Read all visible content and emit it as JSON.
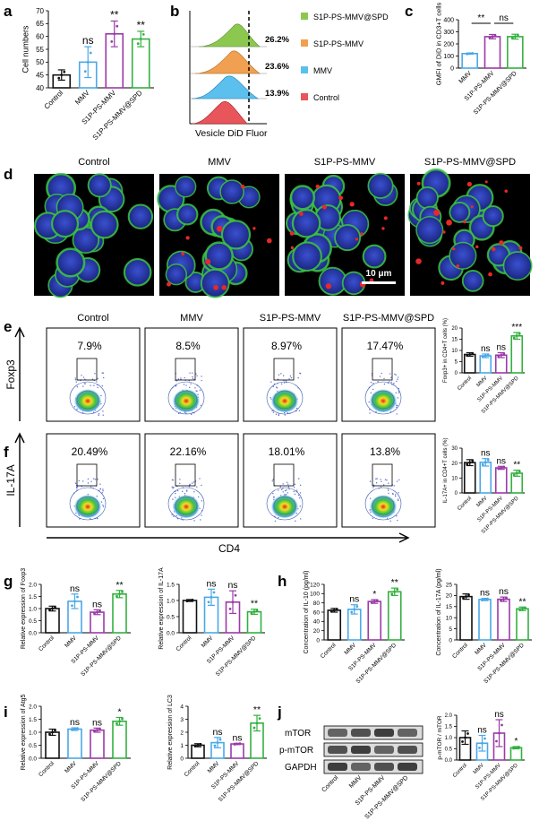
{
  "panels": {
    "a": "a",
    "b": "b",
    "c": "c",
    "d": "d",
    "e": "e",
    "f": "f",
    "g": "g",
    "h": "h",
    "i": "i",
    "j": "j"
  },
  "colors": {
    "control": "#111111",
    "mmv": "#4aa8e8",
    "s1p": "#9b3aa8",
    "spd": "#33b040",
    "hist_spd": "#8cc850",
    "hist_s1p": "#f0a050",
    "hist_mmv": "#5bc0ee",
    "hist_control": "#e8555a",
    "cell_nucleus": "#2a3aa8",
    "cell_membrane": "#3cc840",
    "particles": "#e82828"
  },
  "groups": [
    "Control",
    "MMV",
    "S1P-PS-MMV",
    "S1P-PS-MMV@SPD"
  ],
  "hist": {
    "legend": [
      "S1P-PS-MMV@SPD",
      "S1P-PS-MMV",
      "MMV",
      "Control"
    ],
    "percents": [
      "26.2%",
      "23.6%",
      "13.9%"
    ],
    "xlabel": "Vesicle DiD Fluor"
  },
  "micro": {
    "titles": [
      "Control",
      "MMV",
      "S1P-PS-MMV",
      "S1P-PS-MMV@SPD"
    ],
    "scalebar": "10 μm"
  },
  "flow": {
    "titles": [
      "Control",
      "MMV",
      "S1P-PS-MMV",
      "S1P-PS-MMV@SPD"
    ],
    "foxp3_pct": [
      "7.9%",
      "8.5%",
      "8.97%",
      "17.47%"
    ],
    "il17_pct": [
      "20.49%",
      "22.16%",
      "18.01%",
      "13.8%"
    ],
    "ylabel_e": "Foxp3",
    "ylabel_f": "IL-17A",
    "xlabel": "CD4"
  },
  "wb": {
    "bands": [
      "mTOR",
      "p-mTOR",
      "GAPDH"
    ]
  },
  "chart_data": [
    {
      "id": "a",
      "type": "bar",
      "categories": [
        "Control",
        "MMV",
        "S1P-PS-MMV",
        "S1P-PS-MMV@SPD"
      ],
      "values": [
        45,
        50,
        61,
        59
      ],
      "errors": [
        2,
        6,
        5,
        3
      ],
      "ylabel": "Cell numbers",
      "ylim": [
        40,
        70
      ],
      "yticks": [
        40,
        45,
        50,
        55,
        60,
        65,
        70
      ],
      "sig": [
        "",
        "ns",
        "**",
        "**"
      ]
    },
    {
      "id": "c",
      "type": "bar",
      "categories": [
        "MMV",
        "S1P-PS-MMV",
        "S1P-PS-MMV@SPD"
      ],
      "values": [
        120,
        260,
        260
      ],
      "errors": [
        5,
        18,
        20
      ],
      "ylabel": "GMFI of DiD in CD3+T cells",
      "ylim": [
        0,
        400
      ],
      "yticks": [
        0,
        100,
        200,
        300,
        400
      ],
      "comparisons": [
        "**",
        "ns"
      ]
    },
    {
      "id": "e",
      "type": "bar",
      "categories": [
        "Control",
        "MMV",
        "S1P-PS-MMV",
        "S1P-PS-MMV@SPD"
      ],
      "values": [
        8.2,
        7.6,
        7.9,
        16.5
      ],
      "errors": [
        0.8,
        0.8,
        1.1,
        1.5
      ],
      "ylabel": "Foxp3+ in CD4+T cells (%)",
      "ylim": [
        0,
        20
      ],
      "yticks": [
        0,
        5,
        10,
        15,
        20
      ],
      "sig": [
        "",
        "ns",
        "ns",
        "***"
      ]
    },
    {
      "id": "f",
      "type": "bar",
      "categories": [
        "Control",
        "MMV",
        "S1P-PS-MMV",
        "S1P-PS-MMV@SPD"
      ],
      "values": [
        20.3,
        20.5,
        16.8,
        13.2
      ],
      "errors": [
        2,
        2.5,
        1,
        2
      ],
      "ylabel": "IL-17A+ in CD4+T cells (%)",
      "ylim": [
        0,
        30
      ],
      "yticks": [
        0,
        10,
        20,
        30
      ],
      "sig": [
        "",
        "ns",
        "ns",
        "**"
      ]
    },
    {
      "id": "g1",
      "type": "bar",
      "categories": [
        "Control",
        "MMV",
        "S1P-PS-MMV",
        "S1P-PS-MMV@SPD"
      ],
      "values": [
        1.0,
        1.3,
        0.85,
        1.6
      ],
      "errors": [
        0.1,
        0.3,
        0.1,
        0.15
      ],
      "ylabel": "Relative expression of Foxp3",
      "ylim": [
        0,
        2.0
      ],
      "yticks": [
        0.0,
        0.5,
        1.0,
        1.5,
        2.0
      ],
      "sig": [
        "",
        "ns",
        "ns",
        "**"
      ]
    },
    {
      "id": "g2",
      "type": "bar",
      "categories": [
        "Control",
        "MMV",
        "S1P-PS-MMV",
        "S1P-PS-MMV@SPD"
      ],
      "values": [
        1.0,
        1.1,
        0.95,
        0.65
      ],
      "errors": [
        0.03,
        0.25,
        0.35,
        0.08
      ],
      "ylabel": "Relative expression of IL-17A",
      "ylim": [
        0,
        1.5
      ],
      "yticks": [
        0.0,
        0.5,
        1.0,
        1.5
      ],
      "sig": [
        "",
        "ns",
        "ns",
        "**"
      ]
    },
    {
      "id": "h1",
      "type": "bar",
      "categories": [
        "Control",
        "MMV",
        "S1P-PS-MMV",
        "S1P-PS-MMV@SPD"
      ],
      "values": [
        64,
        66,
        83,
        104
      ],
      "errors": [
        4,
        10,
        4,
        8
      ],
      "ylabel": "Concentration of IL-10 (pg/ml)",
      "ylim": [
        0,
        120
      ],
      "yticks": [
        0,
        20,
        40,
        60,
        80,
        100,
        120
      ],
      "sig": [
        "",
        "ns",
        "*",
        "**"
      ]
    },
    {
      "id": "h2",
      "type": "bar",
      "categories": [
        "Control",
        "MMV",
        "S1P-PS-MMV",
        "S1P-PS-MMV@SPD"
      ],
      "values": [
        19.5,
        18.2,
        18.3,
        14
      ],
      "errors": [
        1.2,
        0.5,
        1,
        0.8
      ],
      "ylabel": "Concentration of IL-17A (pg/ml)",
      "ylim": [
        0,
        25
      ],
      "yticks": [
        0,
        5,
        10,
        15,
        20,
        25
      ],
      "sig": [
        "",
        "ns",
        "ns",
        "**"
      ]
    },
    {
      "id": "i1",
      "type": "bar",
      "categories": [
        "Control",
        "MMV",
        "S1P-PS-MMV",
        "S1P-PS-MMV@SPD"
      ],
      "values": [
        1.0,
        1.12,
        1.08,
        1.42
      ],
      "errors": [
        0.12,
        0.05,
        0.08,
        0.15
      ],
      "ylabel": "Relative expression of Atg5",
      "ylim": [
        0,
        2.0
      ],
      "yticks": [
        0.0,
        0.5,
        1.0,
        1.5,
        2.0
      ],
      "sig": [
        "",
        "ns",
        "ns",
        "*"
      ]
    },
    {
      "id": "i2",
      "type": "bar",
      "categories": [
        "Control",
        "MMV",
        "S1P-PS-MMV",
        "S1P-PS-MMV@SPD"
      ],
      "values": [
        1.0,
        1.2,
        1.1,
        2.7
      ],
      "errors": [
        0.12,
        0.4,
        0.05,
        0.6
      ],
      "ylabel": "Relative expression of LC3",
      "ylim": [
        0,
        4
      ],
      "yticks": [
        0,
        1,
        2,
        3,
        4
      ],
      "sig": [
        "",
        "ns",
        "ns",
        "**"
      ]
    },
    {
      "id": "j",
      "type": "bar",
      "categories": [
        "Control",
        "MMV",
        "S1P-PS-MMV",
        "S1P-PS-MMV@SPD"
      ],
      "values": [
        1.0,
        0.75,
        1.2,
        0.55
      ],
      "errors": [
        0.3,
        0.35,
        0.6,
        0.05
      ],
      "ylabel": "p-mTOR / mTOR",
      "ylim": [
        0,
        2.0
      ],
      "yticks": [
        0.0,
        0.5,
        1.0,
        1.5,
        2.0
      ],
      "sig": [
        "",
        "ns",
        "ns",
        "*"
      ]
    }
  ]
}
